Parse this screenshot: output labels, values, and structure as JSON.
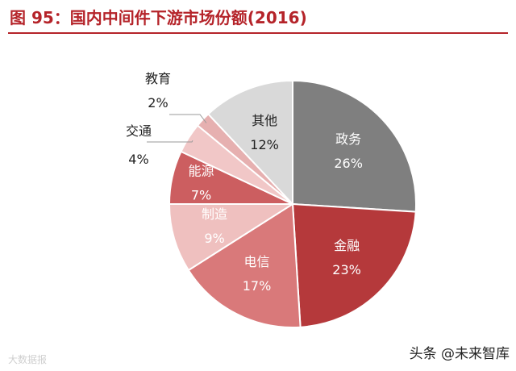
{
  "chart_data": {
    "type": "pie",
    "title": "图 95：国内中间件下游市场份额(2016)",
    "categories": [
      "政务",
      "金融",
      "电信",
      "制造",
      "能源",
      "交通",
      "教育",
      "其他"
    ],
    "values": [
      26,
      23,
      17,
      9,
      7,
      4,
      2,
      12
    ],
    "value_labels": [
      "26%",
      "23%",
      "17%",
      "9%",
      "7%",
      "4%",
      "2%",
      "12%"
    ],
    "colors": [
      "#7f7f7f",
      "#b5393b",
      "#d9797a",
      "#efc0bf",
      "#cc5e60",
      "#f1c7c7",
      "#e6b0b0",
      "#d9d9d9"
    ],
    "legend": "none",
    "start_angle_deg": 0,
    "direction": "clockwise"
  },
  "watermark_left": "大数据报",
  "watermark_right": "头条 @未来智库"
}
